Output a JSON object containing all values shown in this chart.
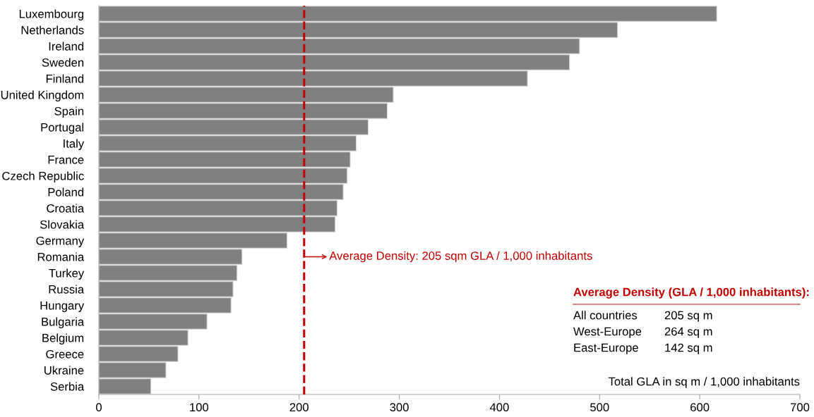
{
  "chart_data": {
    "type": "bar",
    "orientation": "horizontal",
    "categories": [
      "Luxembourg",
      "Netherlands",
      "Ireland",
      "Sweden",
      "Finland",
      "United Kingdom",
      "Spain",
      "Portugal",
      "Italy",
      "France",
      "Czech Republic",
      "Poland",
      "Croatia",
      "Slovakia",
      "Germany",
      "Romania",
      "Turkey",
      "Russia",
      "Hungary",
      "Bulgaria",
      "Belgium",
      "Greece",
      "Ukraine",
      "Serbia"
    ],
    "values": [
      617,
      518,
      480,
      470,
      428,
      294,
      288,
      269,
      257,
      251,
      248,
      244,
      238,
      236,
      188,
      143,
      138,
      134,
      132,
      108,
      89,
      79,
      67,
      52
    ],
    "color": "#808080",
    "xlabel": "Total GLA in sq m / 1,000 inhabitants",
    "xlim": [
      0,
      700
    ],
    "xticks": [
      0,
      100,
      200,
      300,
      400,
      500,
      600,
      700
    ],
    "grid": false,
    "legend": false,
    "ref_lines": [
      {
        "axis": "x",
        "value": 205,
        "label": "Average Density: 205 sqm GLA / 1,000 inhabitants",
        "color": "#c00000",
        "line_style": "dashed"
      }
    ],
    "annotations": [
      "Average Density (GLA / 1,000 inhabitants):",
      "All countries",
      "205 sq m",
      "West-Europe",
      "264 sq m",
      "East-Europe",
      "142 sq m"
    ]
  }
}
